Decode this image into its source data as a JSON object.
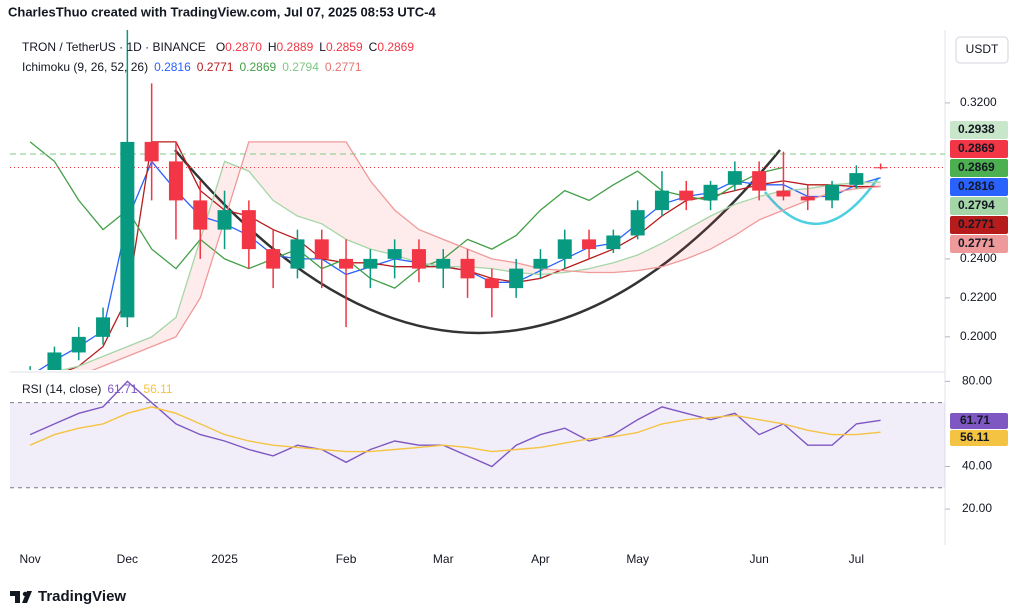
{
  "header": "CharlesThuo created with TradingView.com, Jul 07, 2025 08:53 UTC-4",
  "currency": "USDT",
  "footer": "TradingView",
  "chart_data": [
    {
      "type": "candlestick",
      "title": "TRON / TetherUS · 1D · BINANCE",
      "ohlc_legend": [
        {
          "key": "O",
          "value": 0.287,
          "label": "0.2870"
        },
        {
          "key": "H",
          "value": 0.2889,
          "label": "0.2889"
        },
        {
          "key": "L",
          "value": 0.2859,
          "label": "0.2859"
        },
        {
          "key": "C",
          "value": 0.2869,
          "label": "0.2869"
        }
      ],
      "indicator": "Ichimoku (9, 26, 52, 26)",
      "indicator_values": [
        3,
        5,
        2,
        4,
        6
      ],
      "categories": [
        "Nov",
        null,
        null,
        null,
        "Dec",
        null,
        null,
        null,
        "2025",
        null,
        null,
        null,
        null,
        "Feb",
        null,
        null,
        null,
        "Mar",
        null,
        null,
        null,
        "Apr",
        null,
        null,
        null,
        "May",
        null,
        null,
        null,
        null,
        "Jun",
        null,
        null,
        null,
        "Jul",
        null
      ],
      "open": [
        0.175,
        0.182,
        0.192,
        0.2,
        0.21,
        0.3,
        0.29,
        0.27,
        0.255,
        0.265,
        0.245,
        0.235,
        0.25,
        0.24,
        0.235,
        0.24,
        0.245,
        0.235,
        0.24,
        0.23,
        0.225,
        0.235,
        0.24,
        0.25,
        0.245,
        0.252,
        0.265,
        0.275,
        0.27,
        0.278,
        0.285,
        0.275,
        0.272,
        0.27,
        0.278,
        0.287
      ],
      "high": [
        0.185,
        0.195,
        0.205,
        0.215,
        0.44,
        0.33,
        0.3,
        0.28,
        0.275,
        0.27,
        0.255,
        0.255,
        0.255,
        0.25,
        0.245,
        0.25,
        0.25,
        0.245,
        0.245,
        0.235,
        0.24,
        0.245,
        0.255,
        0.255,
        0.255,
        0.27,
        0.285,
        0.28,
        0.28,
        0.29,
        0.29,
        0.295,
        0.278,
        0.28,
        0.288,
        0.2889
      ],
      "low": [
        0.172,
        0.18,
        0.188,
        0.196,
        0.205,
        0.27,
        0.25,
        0.24,
        0.245,
        0.235,
        0.225,
        0.23,
        0.225,
        0.205,
        0.225,
        0.23,
        0.228,
        0.225,
        0.22,
        0.21,
        0.22,
        0.23,
        0.235,
        0.24,
        0.243,
        0.25,
        0.262,
        0.265,
        0.265,
        0.275,
        0.27,
        0.27,
        0.265,
        0.266,
        0.276,
        0.2859
      ],
      "close": [
        0.182,
        0.192,
        0.2,
        0.21,
        0.3,
        0.29,
        0.27,
        0.255,
        0.265,
        0.245,
        0.235,
        0.25,
        0.24,
        0.235,
        0.24,
        0.245,
        0.235,
        0.24,
        0.23,
        0.225,
        0.235,
        0.24,
        0.25,
        0.245,
        0.252,
        0.265,
        0.275,
        0.27,
        0.278,
        0.285,
        0.275,
        0.272,
        0.27,
        0.278,
        0.284,
        0.2869
      ],
      "up_color": "#089981",
      "down_color": "#f23645",
      "series": [
        {
          "color": "#2962ff",
          "values": [
            0.18,
            0.188,
            0.195,
            0.203,
            0.26,
            0.29,
            0.275,
            0.262,
            0.258,
            0.252,
            0.242,
            0.24,
            0.24,
            0.232,
            0.236,
            0.24,
            0.238,
            0.236,
            0.234,
            0.228,
            0.228,
            0.234,
            0.24,
            0.246,
            0.248,
            0.258,
            0.268,
            0.272,
            0.274,
            0.28,
            0.278,
            0.278,
            0.272,
            0.272,
            0.278,
            0.2816
          ]
        },
        {
          "color": "#b71c1c",
          "values": [
            0.175,
            0.18,
            0.185,
            0.195,
            0.22,
            0.3,
            0.3,
            0.275,
            0.265,
            0.262,
            0.255,
            0.25,
            0.24,
            0.238,
            0.238,
            0.236,
            0.236,
            0.236,
            0.234,
            0.23,
            0.228,
            0.23,
            0.235,
            0.24,
            0.245,
            0.252,
            0.262,
            0.27,
            0.272,
            0.275,
            0.278,
            0.28,
            0.278,
            0.278,
            0.277,
            0.2771
          ]
        },
        {
          "color": "#43a047",
          "values": [
            0.3,
            0.29,
            0.27,
            0.255,
            0.265,
            0.245,
            0.235,
            0.25,
            0.24,
            0.235,
            0.24,
            0.245,
            0.235,
            0.24,
            0.23,
            0.225,
            0.235,
            0.24,
            0.25,
            0.245,
            0.252,
            0.265,
            0.275,
            0.27,
            0.278,
            0.285,
            0.275,
            0.272,
            0.27,
            0.278,
            0.284,
            0.2869,
            null,
            null,
            null,
            null
          ]
        },
        {
          "color": "#a5d6a7",
          "values": [
            0.18,
            0.182,
            0.185,
            0.19,
            0.195,
            0.2,
            0.21,
            0.25,
            0.29,
            0.285,
            0.27,
            0.262,
            0.258,
            0.25,
            0.245,
            0.242,
            0.238,
            0.236,
            0.236,
            0.235,
            0.233,
            0.232,
            0.233,
            0.235,
            0.238,
            0.242,
            0.248,
            0.255,
            0.262,
            0.268,
            0.272,
            0.275,
            0.276,
            0.278,
            0.279,
            0.2794
          ]
        },
        {
          "color": "#ef9a9a",
          "values": [
            0.175,
            0.178,
            0.18,
            0.185,
            0.19,
            0.195,
            0.2,
            0.22,
            0.26,
            0.3,
            0.3,
            0.3,
            0.3,
            0.3,
            0.28,
            0.265,
            0.255,
            0.25,
            0.245,
            0.24,
            0.238,
            0.235,
            0.234,
            0.233,
            0.233,
            0.234,
            0.236,
            0.24,
            0.245,
            0.252,
            0.26,
            0.265,
            0.27,
            0.274,
            0.276,
            0.2771
          ]
        }
      ],
      "cloud": [
        3,
        4
      ],
      "ylim": [
        0.183,
        0.3574
      ],
      "yticks": [
        {
          "value": 0.2,
          "label": "0.2000"
        },
        {
          "value": 0.22,
          "label": "0.2200"
        },
        {
          "value": 0.24,
          "label": "0.2400"
        },
        {
          "value": 0.32,
          "label": "0.3200"
        }
      ],
      "price_labels": [
        {
          "value": 0.2938,
          "color": "#c8e6c9",
          "text_color": "#1b5e20",
          "line": "dashed"
        },
        {
          "value": 0.2869,
          "color": "#f23645",
          "text_color": "#ffffff",
          "line": "dotted"
        },
        {
          "value": 0.2869,
          "color": "#4caf50",
          "text_color": "#ffffff"
        },
        {
          "value": 0.2816,
          "color": "#2962ff",
          "text_color": "#ffffff"
        },
        {
          "value": 0.2794,
          "color": "#a5d6a7",
          "text_color": "#1b5e20"
        },
        {
          "value": 0.2771,
          "color": "#b71c1c",
          "text_color": "#ffffff"
        },
        {
          "value": 0.2771,
          "color": "#ef9a9a",
          "text_color": "#4a0000"
        }
      ],
      "grid": false
    },
    {
      "type": "line",
      "title": "RSI (14, close)",
      "series": [
        {
          "color": "#7e57c2",
          "values": [
            55,
            60,
            65,
            68,
            80,
            70,
            60,
            55,
            52,
            48,
            45,
            50,
            48,
            42,
            48,
            52,
            50,
            50,
            45,
            40,
            50,
            55,
            58,
            52,
            55,
            62,
            68,
            65,
            62,
            65,
            55,
            60,
            50,
            50,
            60,
            61.71
          ]
        },
        {
          "color": "#f5c342",
          "values": [
            50,
            55,
            58,
            60,
            65,
            68,
            65,
            60,
            55,
            52,
            50,
            49,
            48,
            47,
            47,
            48,
            49,
            50,
            49,
            47,
            48,
            49,
            51,
            53,
            54,
            56,
            60,
            62,
            63,
            64,
            62,
            60,
            57,
            55,
            55,
            56.11
          ]
        }
      ],
      "bands": [
        70,
        30
      ],
      "ylim": [
        5,
        83
      ],
      "yticks": [
        {
          "value": 80,
          "label": "80.00"
        },
        {
          "value": 40,
          "label": "40.00"
        },
        {
          "value": 20,
          "label": "20.00"
        }
      ]
    }
  ]
}
